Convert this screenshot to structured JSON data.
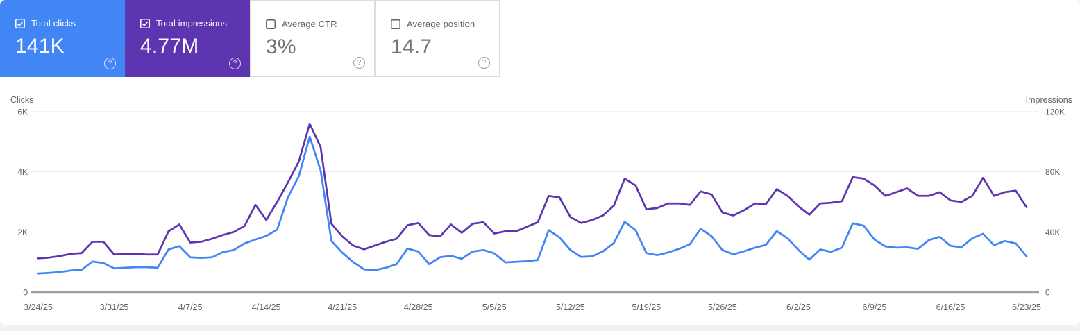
{
  "cards": [
    {
      "label": "Total clicks",
      "value": "141K",
      "checked": true,
      "bg": "#4285f4"
    },
    {
      "label": "Total impressions",
      "value": "4.77M",
      "checked": true,
      "bg": "#5e35b1"
    },
    {
      "label": "Average CTR",
      "value": "3%",
      "checked": false,
      "bg": "#ffffff"
    },
    {
      "label": "Average position",
      "value": "14.7",
      "checked": false,
      "bg": "#ffffff"
    }
  ],
  "help_icon_glyph": "?",
  "colors": {
    "clicks": "#4285f4",
    "impressions": "#5e35b1",
    "axis_text": "#5f6368",
    "gridline": "#e9ebee",
    "zero_line": "#9aa0a6"
  },
  "chart_data": {
    "type": "line",
    "x_start": "3/24/25",
    "x_end": "6/23/25",
    "x_interval": "daily",
    "x_labels": [
      "3/24/25",
      "3/31/25",
      "4/7/25",
      "4/14/25",
      "4/21/25",
      "4/28/25",
      "5/5/25",
      "5/12/25",
      "5/19/25",
      "5/26/25",
      "6/2/25",
      "6/9/25",
      "6/16/25",
      "6/23/25"
    ],
    "left_axis": {
      "title": "Clicks",
      "ticks": [
        "6K",
        "4K",
        "2K",
        "0"
      ],
      "max": 6000,
      "min": 0
    },
    "right_axis": {
      "title": "Impressions",
      "ticks": [
        "120K",
        "80K",
        "40K",
        "0"
      ],
      "max": 120000,
      "min": 0
    },
    "grid": true,
    "legend": "none",
    "series": [
      {
        "name": "Total clicks",
        "axis": "left",
        "color": "#4285f4",
        "values": [
          620,
          640,
          670,
          720,
          740,
          1020,
          970,
          790,
          810,
          830,
          830,
          810,
          1420,
          1530,
          1160,
          1140,
          1160,
          1330,
          1400,
          1620,
          1750,
          1870,
          2080,
          3160,
          3860,
          5170,
          4050,
          1700,
          1310,
          1000,
          760,
          730,
          810,
          930,
          1450,
          1350,
          930,
          1160,
          1210,
          1110,
          1350,
          1400,
          1290,
          990,
          1010,
          1030,
          1070,
          2060,
          1820,
          1400,
          1170,
          1190,
          1360,
          1630,
          2340,
          2060,
          1300,
          1230,
          1320,
          1440,
          1590,
          2110,
          1860,
          1400,
          1260,
          1360,
          1480,
          1570,
          2030,
          1790,
          1400,
          1080,
          1420,
          1340,
          1480,
          2290,
          2210,
          1750,
          1520,
          1480,
          1490,
          1440,
          1730,
          1840,
          1540,
          1490,
          1790,
          1940,
          1560,
          1700,
          1620,
          1190
        ]
      },
      {
        "name": "Total impressions",
        "axis": "right",
        "color": "#5e35b1",
        "values": [
          22500,
          23000,
          24000,
          25500,
          26000,
          33500,
          33500,
          25000,
          25500,
          25500,
          25000,
          25000,
          40500,
          45000,
          33000,
          33500,
          35500,
          38000,
          40000,
          44000,
          58000,
          48000,
          60000,
          73000,
          87000,
          112000,
          96500,
          45500,
          37000,
          31000,
          28500,
          31000,
          33500,
          35500,
          44500,
          46000,
          38000,
          37000,
          45000,
          39500,
          45500,
          46500,
          39000,
          40500,
          40500,
          43500,
          46500,
          64000,
          63000,
          50000,
          46000,
          48000,
          51000,
          57500,
          75500,
          71000,
          55000,
          56000,
          59000,
          59000,
          58000,
          67000,
          65000,
          53000,
          51000,
          54500,
          59000,
          58500,
          68500,
          64000,
          57000,
          51500,
          59000,
          59500,
          60500,
          76500,
          75500,
          71000,
          64000,
          66500,
          69000,
          64000,
          64000,
          66500,
          61000,
          60000,
          64000,
          76000,
          64000,
          66500,
          67500,
          56500
        ]
      }
    ]
  }
}
